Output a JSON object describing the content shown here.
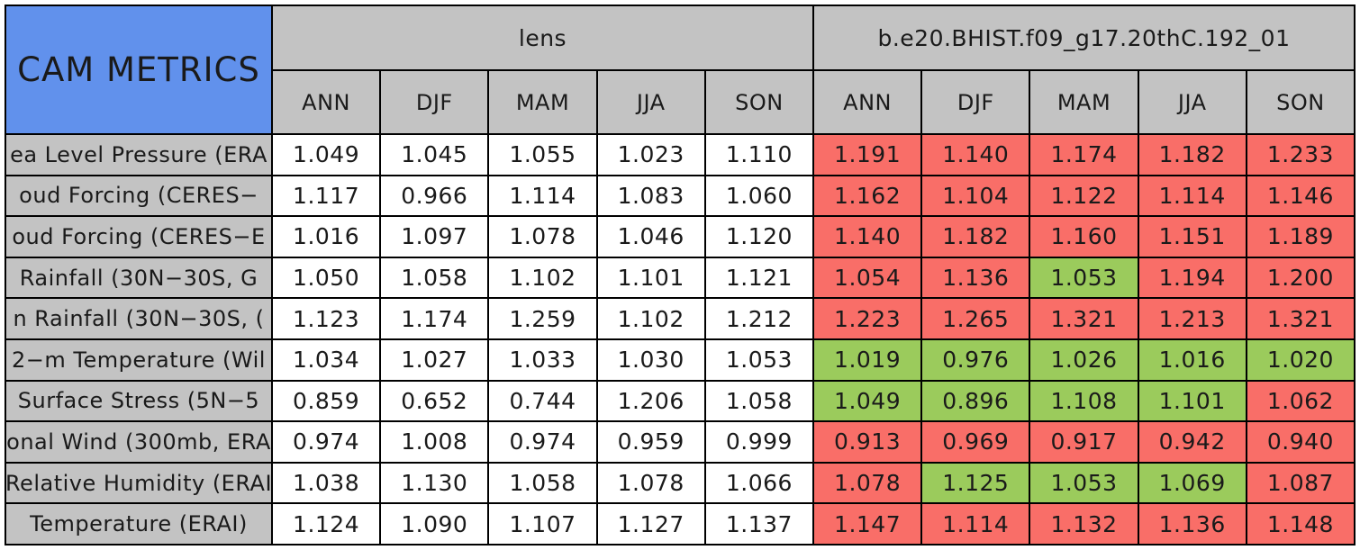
{
  "title": "CAM METRICS",
  "colors": {
    "blue": "#6191EC",
    "gray": "#C3C3C3",
    "red": "#F96E68",
    "green": "#9BCB5C"
  },
  "chart_data": {
    "type": "table",
    "title": "CAM METRICS",
    "col_groups": [
      {
        "label": "lens"
      },
      {
        "label": "b.e20.BHIST.f09_g17.20thC.192_01"
      }
    ],
    "seasons": [
      "ANN",
      "DJF",
      "MAM",
      "JJA",
      "SON"
    ],
    "cell_color_legend": {
      "red": "#F96E68",
      "green": "#9BCB5C",
      "plain": "#FFFFFF"
    },
    "rows": [
      {
        "label": "ea Level Pressure (ERA",
        "lens": [
          "1.049",
          "1.045",
          "1.055",
          "1.023",
          "1.110"
        ],
        "case": [
          {
            "v": "1.191",
            "c": "r"
          },
          {
            "v": "1.140",
            "c": "r"
          },
          {
            "v": "1.174",
            "c": "r"
          },
          {
            "v": "1.182",
            "c": "r"
          },
          {
            "v": "1.233",
            "c": "r"
          }
        ]
      },
      {
        "label": "oud Forcing (CERES−",
        "lens": [
          "1.117",
          "0.966",
          "1.114",
          "1.083",
          "1.060"
        ],
        "case": [
          {
            "v": "1.162",
            "c": "r"
          },
          {
            "v": "1.104",
            "c": "r"
          },
          {
            "v": "1.122",
            "c": "r"
          },
          {
            "v": "1.114",
            "c": "r"
          },
          {
            "v": "1.146",
            "c": "r"
          }
        ]
      },
      {
        "label": "oud Forcing (CERES−E",
        "lens": [
          "1.016",
          "1.097",
          "1.078",
          "1.046",
          "1.120"
        ],
        "case": [
          {
            "v": "1.140",
            "c": "r"
          },
          {
            "v": "1.182",
            "c": "r"
          },
          {
            "v": "1.160",
            "c": "r"
          },
          {
            "v": "1.151",
            "c": "r"
          },
          {
            "v": "1.189",
            "c": "r"
          }
        ]
      },
      {
        "label": "Rainfall (30N−30S, G",
        "lens": [
          "1.050",
          "1.058",
          "1.102",
          "1.101",
          "1.121"
        ],
        "case": [
          {
            "v": "1.054",
            "c": "r"
          },
          {
            "v": "1.136",
            "c": "r"
          },
          {
            "v": "1.053",
            "c": "g"
          },
          {
            "v": "1.194",
            "c": "r"
          },
          {
            "v": "1.200",
            "c": "r"
          }
        ]
      },
      {
        "label": "n Rainfall (30N−30S, (",
        "lens": [
          "1.123",
          "1.174",
          "1.259",
          "1.102",
          "1.212"
        ],
        "case": [
          {
            "v": "1.223",
            "c": "r"
          },
          {
            "v": "1.265",
            "c": "r"
          },
          {
            "v": "1.321",
            "c": "r"
          },
          {
            "v": "1.213",
            "c": "r"
          },
          {
            "v": "1.321",
            "c": "r"
          }
        ]
      },
      {
        "label": "2−m Temperature (Wil",
        "lens": [
          "1.034",
          "1.027",
          "1.033",
          "1.030",
          "1.053"
        ],
        "case": [
          {
            "v": "1.019",
            "c": "g"
          },
          {
            "v": "0.976",
            "c": "g"
          },
          {
            "v": "1.026",
            "c": "g"
          },
          {
            "v": "1.016",
            "c": "g"
          },
          {
            "v": "1.020",
            "c": "g"
          }
        ]
      },
      {
        "label": "Surface Stress (5N−5",
        "lens": [
          "0.859",
          "0.652",
          "0.744",
          "1.206",
          "1.058"
        ],
        "case": [
          {
            "v": "1.049",
            "c": "g"
          },
          {
            "v": "0.896",
            "c": "g"
          },
          {
            "v": "1.108",
            "c": "g"
          },
          {
            "v": "1.101",
            "c": "g"
          },
          {
            "v": "1.062",
            "c": "r"
          }
        ]
      },
      {
        "label": "onal Wind (300mb, ERA",
        "lens": [
          "0.974",
          "1.008",
          "0.974",
          "0.959",
          "0.999"
        ],
        "case": [
          {
            "v": "0.913",
            "c": "r"
          },
          {
            "v": "0.969",
            "c": "r"
          },
          {
            "v": "0.917",
            "c": "r"
          },
          {
            "v": "0.942",
            "c": "r"
          },
          {
            "v": "0.940",
            "c": "r"
          }
        ]
      },
      {
        "label": "Relative Humidity (ERAI",
        "lens": [
          "1.038",
          "1.130",
          "1.058",
          "1.078",
          "1.066"
        ],
        "case": [
          {
            "v": "1.078",
            "c": "r"
          },
          {
            "v": "1.125",
            "c": "g"
          },
          {
            "v": "1.053",
            "c": "g"
          },
          {
            "v": "1.069",
            "c": "g"
          },
          {
            "v": "1.087",
            "c": "r"
          }
        ]
      },
      {
        "label": "Temperature (ERAI)",
        "lens": [
          "1.124",
          "1.090",
          "1.107",
          "1.127",
          "1.137"
        ],
        "case": [
          {
            "v": "1.147",
            "c": "r"
          },
          {
            "v": "1.114",
            "c": "r"
          },
          {
            "v": "1.132",
            "c": "r"
          },
          {
            "v": "1.136",
            "c": "r"
          },
          {
            "v": "1.148",
            "c": "r"
          }
        ]
      }
    ]
  }
}
